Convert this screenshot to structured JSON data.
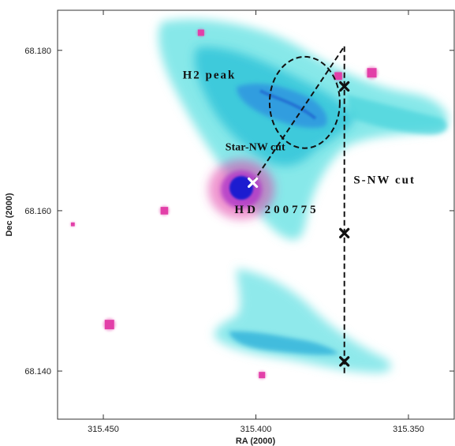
{
  "chart_data": {
    "type": "heatmap",
    "title": "",
    "xlabel": "RA (2000)",
    "ylabel": "Dec (2000)",
    "xlim": [
      315.465,
      315.335
    ],
    "ylim": [
      68.134,
      68.185
    ],
    "x_reversed": true,
    "grid": false,
    "x_ticks": [
      {
        "value": 315.45,
        "label": "315.450"
      },
      {
        "value": 315.4,
        "label": "315.400"
      },
      {
        "value": 315.35,
        "label": "315.350"
      }
    ],
    "y_ticks": [
      {
        "value": 68.14,
        "label": "68.140"
      },
      {
        "value": 68.16,
        "label": "68.160"
      },
      {
        "value": 68.18,
        "label": "68.180"
      }
    ],
    "colors": {
      "nebula": "#3fd2dc",
      "nebula_dense": "#1e6fcf",
      "star": "#e23fa8",
      "star_core": "#1a1ad0"
    },
    "annotations": {
      "h2_peak": {
        "text": "H2 peak",
        "x": 315.424,
        "y": 68.1765
      },
      "star_nw_cut": {
        "text": "Star-NW cut",
        "x": 315.41,
        "y": 68.1675
      },
      "hd_star": {
        "text": "HD 200775",
        "x": 315.407,
        "y": 68.1597
      },
      "s_nw_cut": {
        "text": "S-NW cut",
        "x": 315.368,
        "y": 68.1634
      }
    },
    "circle": {
      "x": 315.384,
      "y": 68.1735,
      "radius_ra": 0.0115,
      "radius_dec": 0.0057
    },
    "star_position": {
      "x": 315.401,
      "y": 68.1635
    },
    "star_nw_line": [
      {
        "x": 315.401,
        "y": 68.1635
      },
      {
        "x": 315.371,
        "y": 68.1805
      }
    ],
    "s_nw_line": [
      {
        "x": 315.371,
        "y": 68.1805
      },
      {
        "x": 315.371,
        "y": 68.1395
      }
    ],
    "s_nw_markers": [
      {
        "x": 315.371,
        "y": 68.1755
      },
      {
        "x": 315.371,
        "y": 68.1572
      },
      {
        "x": 315.371,
        "y": 68.1412
      }
    ],
    "point_sources": [
      {
        "x": 315.418,
        "y": 68.1822,
        "size": 1.0
      },
      {
        "x": 315.373,
        "y": 68.1768,
        "size": 1.2
      },
      {
        "x": 315.362,
        "y": 68.1772,
        "size": 1.5
      },
      {
        "x": 315.43,
        "y": 68.16,
        "size": 1.2
      },
      {
        "x": 315.46,
        "y": 68.1583,
        "size": 0.6
      },
      {
        "x": 315.448,
        "y": 68.1458,
        "size": 1.5
      },
      {
        "x": 315.398,
        "y": 68.1395,
        "size": 1.0
      }
    ]
  }
}
